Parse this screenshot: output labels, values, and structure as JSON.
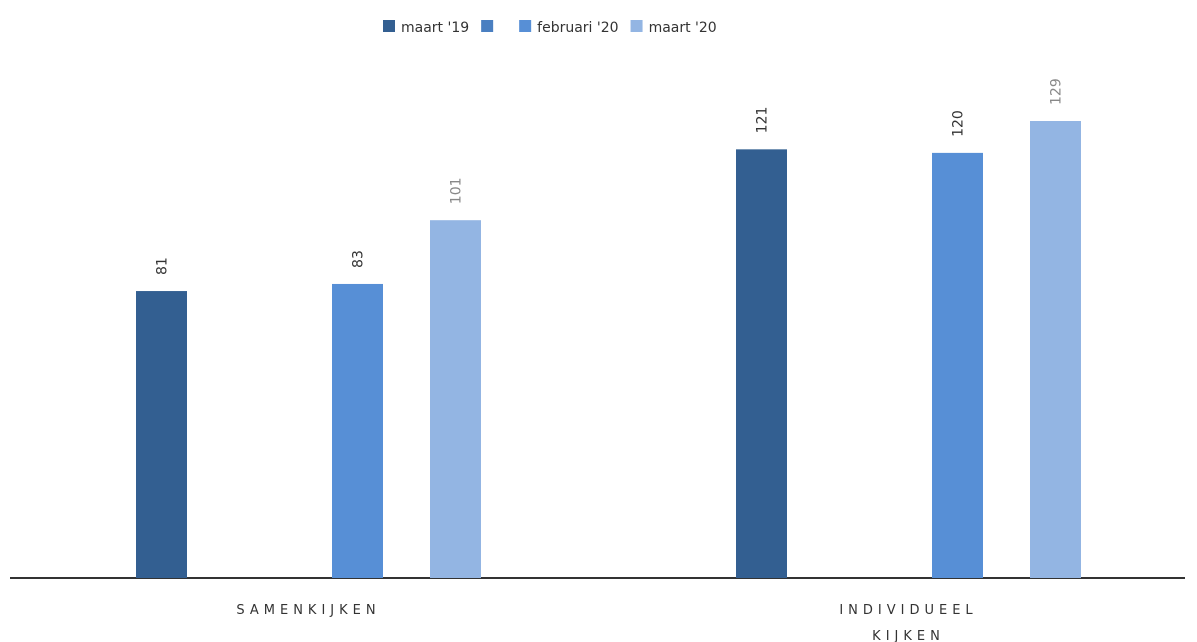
{
  "chart_data": {
    "type": "bar",
    "categories": [
      "SAMENKIJKEN",
      "INDIVIDUEEL KIJKEN"
    ],
    "series": [
      {
        "name": "maart '19",
        "color": "#335f91",
        "values": [
          81,
          121
        ]
      },
      {
        "name": null,
        "color": "#4a7fc1",
        "values": [
          null,
          null
        ]
      },
      {
        "name": "februari '20",
        "color": "#578fd6",
        "values": [
          83,
          120
        ]
      },
      {
        "name": "maart '20",
        "color": "#93b5e3",
        "values": [
          101,
          129
        ]
      }
    ],
    "legend": "top"
  }
}
